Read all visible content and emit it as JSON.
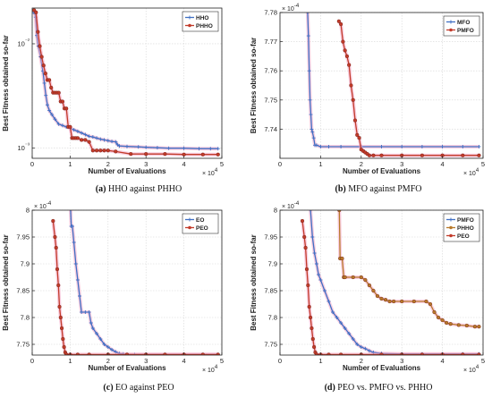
{
  "chart_data": [
    {
      "type": "line",
      "caption": "(a) HHO against PHHO",
      "xlabel": "Number of Evaluations",
      "ylabel": "Best Fitness obtained so-far",
      "x_exponent": "× 10^4",
      "y_exponent": "",
      "yscale": "log",
      "xlim": [
        0,
        50000
      ],
      "ylim": [
        0.0008,
        0.022
      ],
      "xticks": [
        0,
        10000,
        20000,
        30000,
        40000,
        50000
      ],
      "xtick_labels": [
        "0",
        "1",
        "2",
        "3",
        "4",
        "5"
      ],
      "yticks": [
        0.001,
        0.01
      ],
      "ytick_labels": [
        "10⁻³",
        "10⁻²"
      ],
      "grid": true,
      "legend": "top-right",
      "series": [
        {
          "name": "HHO",
          "color": "#3f6fc4",
          "marker": "plus",
          "x": [
            300,
            600,
            900,
            1200,
            1600,
            2200,
            2800,
            3200,
            3600,
            4000,
            4500,
            5200,
            6000,
            7000,
            8000,
            9000,
            10000,
            11000,
            12000,
            13000,
            14000,
            15000,
            16000,
            17000,
            18000,
            19000,
            20000,
            21000,
            22000,
            22500,
            23000,
            25000,
            28000,
            30000,
            33000,
            36000,
            40000,
            44000,
            47000,
            49000
          ],
          "y": [
            0.02,
            0.02,
            0.018,
            0.012,
            0.0095,
            0.0075,
            0.0055,
            0.0042,
            0.0032,
            0.0026,
            0.0023,
            0.0021,
            0.0019,
            0.0017,
            0.00165,
            0.0016,
            0.00155,
            0.0015,
            0.00145,
            0.0014,
            0.00135,
            0.0013,
            0.00128,
            0.00125,
            0.00122,
            0.0012,
            0.00118,
            0.00116,
            0.00115,
            0.00108,
            0.00105,
            0.00104,
            0.00103,
            0.00102,
            0.00101,
            0.001,
            0.001,
            0.00099,
            0.00099,
            0.00099
          ]
        },
        {
          "name": "PHHO",
          "color": "#c23b2a",
          "marker": "circle",
          "x": [
            500,
            1000,
            1500,
            2000,
            2500,
            3000,
            3500,
            4000,
            4500,
            5000,
            5500,
            6000,
            6500,
            7000,
            7500,
            8000,
            8500,
            9000,
            9500,
            10000,
            10500,
            11000,
            11500,
            12000,
            13000,
            14000,
            15000,
            16000,
            17000,
            18000,
            19000,
            20000,
            22000,
            26000,
            30000,
            35000,
            40000,
            45000,
            49000
          ],
          "y": [
            0.021,
            0.02,
            0.013,
            0.0095,
            0.0075,
            0.0062,
            0.0052,
            0.0045,
            0.0045,
            0.0038,
            0.0034,
            0.0034,
            0.0034,
            0.0034,
            0.0028,
            0.0028,
            0.0024,
            0.0024,
            0.0016,
            0.0016,
            0.00125,
            0.00125,
            0.00125,
            0.00125,
            0.0012,
            0.0012,
            0.00115,
            0.00095,
            0.00095,
            0.00095,
            0.00095,
            0.00095,
            0.00093,
            0.00088,
            0.00088,
            0.00088,
            0.00087,
            0.00087,
            0.00087
          ]
        }
      ]
    },
    {
      "type": "line",
      "caption": "(b) MFO against PMFO",
      "xlabel": "Number of Evaluations",
      "ylabel": "Best Fitness obtained so-far",
      "x_exponent": "× 10^4",
      "y_exponent": "× 10^-4",
      "xlim": [
        0,
        50000
      ],
      "ylim": [
        7.73,
        7.78
      ],
      "xticks": [
        0,
        10000,
        20000,
        30000,
        40000,
        50000
      ],
      "xtick_labels": [
        "0",
        "1",
        "2",
        "3",
        "4",
        "5"
      ],
      "yticks": [
        7.74,
        7.75,
        7.76,
        7.77,
        7.78
      ],
      "ytick_labels": [
        "7.74",
        "7.75",
        "7.76",
        "7.77",
        "7.78"
      ],
      "grid": true,
      "legend": "top-right",
      "series": [
        {
          "name": "MFO",
          "color": "#3f6fc4",
          "marker": "plus",
          "x": [
            6500,
            6800,
            7000,
            7200,
            7400,
            7600,
            7800,
            8000,
            8300,
            8600,
            9000,
            10000,
            12000,
            15000,
            20000,
            25000,
            30000,
            35000,
            40000,
            45000,
            49000
          ],
          "y": [
            7.8,
            7.78,
            7.772,
            7.76,
            7.75,
            7.745,
            7.74,
            7.739,
            7.737,
            7.7345,
            7.7345,
            7.734,
            7.734,
            7.734,
            7.734,
            7.734,
            7.734,
            7.734,
            7.734,
            7.734,
            7.734
          ]
        },
        {
          "name": "PMFO",
          "color": "#c23b2a",
          "marker": "circle",
          "x": [
            14500,
            15000,
            15500,
            16000,
            16500,
            17000,
            17500,
            18000,
            18500,
            19000,
            19500,
            20000,
            20500,
            21000,
            21500,
            22000,
            23000,
            25000,
            30000,
            35000,
            40000,
            45000,
            49000
          ],
          "y": [
            7.777,
            7.776,
            7.77,
            7.767,
            7.765,
            7.762,
            7.755,
            7.75,
            7.743,
            7.738,
            7.737,
            7.733,
            7.7325,
            7.732,
            7.7315,
            7.731,
            7.731,
            7.731,
            7.731,
            7.731,
            7.731,
            7.731,
            7.731
          ]
        }
      ]
    },
    {
      "type": "line",
      "caption": "(c) EO against PEO",
      "xlabel": "Number of Evaluations",
      "ylabel": "Best Fitness obtained so-far",
      "x_exponent": "× 10^4",
      "y_exponent": "× 10^-4",
      "xlim": [
        0,
        50000
      ],
      "ylim": [
        7.73,
        8.0
      ],
      "xticks": [
        0,
        10000,
        20000,
        30000,
        40000,
        50000
      ],
      "xtick_labels": [
        "0",
        "1",
        "2",
        "3",
        "4",
        "5"
      ],
      "yticks": [
        7.75,
        7.8,
        7.85,
        7.9,
        7.95,
        8.0
      ],
      "ytick_labels": [
        "7.75",
        "7.8",
        "7.85",
        "7.9",
        "7.95",
        "8"
      ],
      "grid": true,
      "legend": "top-right",
      "series": [
        {
          "name": "EO",
          "color": "#3f6fc4",
          "marker": "plus",
          "x": [
            10000,
            10300,
            10600,
            11000,
            11500,
            12000,
            12500,
            13000,
            14000,
            15000,
            15500,
            16000,
            17000,
            18000,
            19000,
            20000,
            21000,
            22000,
            23000,
            24000,
            25000,
            27000,
            30000,
            35000,
            40000,
            45000,
            49000
          ],
          "y": [
            8.02,
            7.97,
            7.97,
            7.94,
            7.9,
            7.87,
            7.84,
            7.81,
            7.81,
            7.81,
            7.79,
            7.78,
            7.77,
            7.76,
            7.75,
            7.745,
            7.74,
            7.736,
            7.733,
            7.732,
            7.731,
            7.731,
            7.731,
            7.731,
            7.731,
            7.731,
            7.731
          ]
        },
        {
          "name": "PEO",
          "color": "#c23b2a",
          "marker": "circle",
          "x": [
            5500,
            6000,
            6300,
            6600,
            6900,
            7200,
            7500,
            7800,
            8100,
            8400,
            8700,
            9000,
            10000,
            12000,
            15000,
            20000,
            25000,
            30000,
            35000,
            40000,
            45000,
            49000
          ],
          "y": [
            7.98,
            7.95,
            7.93,
            7.89,
            7.86,
            7.82,
            7.8,
            7.78,
            7.76,
            7.745,
            7.735,
            7.731,
            7.731,
            7.731,
            7.731,
            7.731,
            7.731,
            7.731,
            7.731,
            7.731,
            7.731,
            7.731
          ]
        }
      ]
    },
    {
      "type": "line",
      "caption": "(d) PEO vs. PMFO vs. PHHO",
      "xlabel": "Number of Evaluations",
      "ylabel": "Best Fitness obtained so-far",
      "x_exponent": "× 10^4",
      "y_exponent": "× 10^-4",
      "xlim": [
        0,
        50000
      ],
      "ylim": [
        7.73,
        8.0
      ],
      "xticks": [
        0,
        10000,
        20000,
        30000,
        40000,
        50000
      ],
      "xtick_labels": [
        "0",
        "1",
        "2",
        "3",
        "4",
        "5"
      ],
      "yticks": [
        7.75,
        7.8,
        7.85,
        7.9,
        7.95,
        8.0
      ],
      "ytick_labels": [
        "7.75",
        "7.8",
        "7.85",
        "7.9",
        "7.95",
        "8"
      ],
      "grid": true,
      "legend": "top-right",
      "series": [
        {
          "name": "PMFO",
          "color": "#3f6fc4",
          "marker": "plus",
          "x": [
            7500,
            8000,
            8500,
            9000,
            9500,
            10000,
            11000,
            12000,
            13000,
            14000,
            15000,
            16000,
            17000,
            18000,
            19000,
            20000,
            21000,
            22000,
            23000,
            25000,
            30000,
            35000,
            40000,
            45000,
            49000
          ],
          "y": [
            8.0,
            7.95,
            7.92,
            7.9,
            7.88,
            7.87,
            7.85,
            7.83,
            7.81,
            7.8,
            7.79,
            7.78,
            7.77,
            7.76,
            7.75,
            7.745,
            7.742,
            7.738,
            7.735,
            7.733,
            7.732,
            7.732,
            7.732,
            7.732,
            7.732
          ]
        },
        {
          "name": "PHHO",
          "color": "#b8792a",
          "marker": "circle",
          "x": [
            14600,
            14800,
            15300,
            15700,
            16000,
            18000,
            20000,
            21000,
            22000,
            23000,
            24000,
            25000,
            26000,
            27000,
            28000,
            30000,
            33000,
            36000,
            37000,
            38000,
            39000,
            40000,
            41000,
            42000,
            44000,
            46000,
            48000,
            49000
          ],
          "y": [
            8.0,
            7.91,
            7.91,
            7.875,
            7.875,
            7.875,
            7.875,
            7.87,
            7.86,
            7.85,
            7.84,
            7.835,
            7.833,
            7.83,
            7.83,
            7.83,
            7.83,
            7.83,
            7.825,
            7.81,
            7.8,
            7.795,
            7.79,
            7.788,
            7.786,
            7.785,
            7.783,
            7.783
          ]
        },
        {
          "name": "PEO",
          "color": "#c23b2a",
          "marker": "circle",
          "x": [
            5500,
            6000,
            6300,
            6600,
            6900,
            7200,
            7500,
            7800,
            8100,
            8400,
            8700,
            9000,
            10000,
            12000,
            15000,
            20000,
            25000,
            30000,
            35000,
            40000,
            45000,
            49000
          ],
          "y": [
            7.98,
            7.95,
            7.93,
            7.89,
            7.86,
            7.82,
            7.8,
            7.78,
            7.76,
            7.745,
            7.735,
            7.731,
            7.731,
            7.731,
            7.731,
            7.731,
            7.731,
            7.731,
            7.731,
            7.731,
            7.731,
            7.731
          ]
        }
      ]
    }
  ]
}
